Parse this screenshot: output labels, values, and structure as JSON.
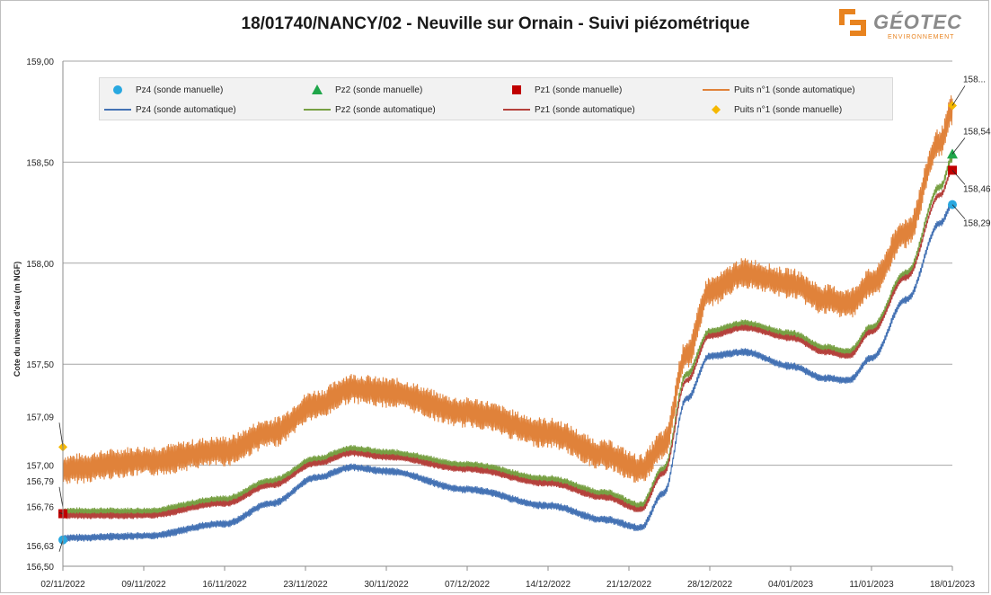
{
  "chart_data": {
    "type": "line",
    "title": "18/01740/NANCY/02 - Neuville sur Ornain - Suivi piézométrique",
    "xlabel": "",
    "ylabel": "Cote du niveau d'eau (m NGF)",
    "ylim": [
      156.5,
      159.0
    ],
    "xlim": [
      "2022-11-02",
      "2023-01-18"
    ],
    "grid": true,
    "legend_position": "top",
    "y_ticks": [
      "156,50",
      "157,00",
      "157,50",
      "158,00",
      "158,50",
      "159,00"
    ],
    "y_tick_values": [
      156.5,
      157.0,
      157.5,
      158.0,
      158.5,
      159.0
    ],
    "x_ticks": [
      "02/11/2022",
      "09/11/2022",
      "16/11/2022",
      "23/11/2022",
      "30/11/2022",
      "07/12/2022",
      "14/12/2022",
      "21/12/2022",
      "28/12/2022",
      "04/01/2023",
      "11/01/2023",
      "18/01/2023"
    ],
    "x_tick_dates": [
      "2022-11-02",
      "2022-11-09",
      "2022-11-16",
      "2022-11-23",
      "2022-11-30",
      "2022-12-07",
      "2022-12-14",
      "2022-12-21",
      "2022-12-28",
      "2023-01-04",
      "2023-01-11",
      "2023-01-18"
    ],
    "series": [
      {
        "name": "Puits n°1 (sonde automatique)",
        "kind": "line",
        "color": "#e0823a",
        "noise_amplitude": 0.075,
        "x": [
          "2022-11-02",
          "2022-11-09",
          "2022-11-16",
          "2022-11-20",
          "2022-11-24",
          "2022-11-27",
          "2022-11-30",
          "2022-12-07",
          "2022-12-14",
          "2022-12-19",
          "2022-12-22",
          "2022-12-24",
          "2022-12-26",
          "2022-12-28",
          "2022-12-31",
          "2023-01-04",
          "2023-01-07",
          "2023-01-09",
          "2023-01-11",
          "2023-01-14",
          "2023-01-17",
          "2023-01-18"
        ],
        "values": [
          156.98,
          157.02,
          157.07,
          157.16,
          157.3,
          157.38,
          157.36,
          157.26,
          157.16,
          157.05,
          156.98,
          157.1,
          157.55,
          157.86,
          157.95,
          157.9,
          157.82,
          157.8,
          157.9,
          158.15,
          158.6,
          158.76
        ]
      },
      {
        "name": "Pz2 (sonde automatique)",
        "kind": "line",
        "color": "#77a043",
        "noise_amplitude": 0.02,
        "x": [
          "2022-11-02",
          "2022-11-09",
          "2022-11-16",
          "2022-11-20",
          "2022-11-24",
          "2022-11-27",
          "2022-11-30",
          "2022-12-07",
          "2022-12-14",
          "2022-12-19",
          "2022-12-22",
          "2022-12-24",
          "2022-12-26",
          "2022-12-28",
          "2022-12-31",
          "2023-01-04",
          "2023-01-07",
          "2023-01-09",
          "2023-01-11",
          "2023-01-14",
          "2023-01-17",
          "2023-01-18"
        ],
        "values": [
          156.77,
          156.77,
          156.83,
          156.92,
          157.03,
          157.08,
          157.06,
          157.0,
          156.93,
          156.86,
          156.8,
          156.98,
          157.45,
          157.66,
          157.7,
          157.65,
          157.58,
          157.56,
          157.68,
          157.95,
          158.38,
          158.52
        ]
      },
      {
        "name": "Pz1 (sonde automatique)",
        "kind": "line",
        "color": "#b5413c",
        "noise_amplitude": 0.015,
        "x": [
          "2022-11-02",
          "2022-11-09",
          "2022-11-16",
          "2022-11-20",
          "2022-11-24",
          "2022-11-27",
          "2022-11-30",
          "2022-12-07",
          "2022-12-14",
          "2022-12-19",
          "2022-12-22",
          "2022-12-24",
          "2022-12-26",
          "2022-12-28",
          "2022-12-31",
          "2023-01-04",
          "2023-01-07",
          "2023-01-09",
          "2023-01-11",
          "2023-01-14",
          "2023-01-17",
          "2023-01-18"
        ],
        "values": [
          156.75,
          156.75,
          156.81,
          156.9,
          157.01,
          157.06,
          157.04,
          156.98,
          156.91,
          156.84,
          156.78,
          156.96,
          157.42,
          157.64,
          157.68,
          157.63,
          157.56,
          157.54,
          157.66,
          157.93,
          158.34,
          158.46
        ]
      },
      {
        "name": "Pz4 (sonde automatique)",
        "kind": "line",
        "color": "#4472b4",
        "noise_amplitude": 0.018,
        "x": [
          "2022-11-02",
          "2022-11-09",
          "2022-11-16",
          "2022-11-20",
          "2022-11-24",
          "2022-11-27",
          "2022-11-30",
          "2022-12-07",
          "2022-12-14",
          "2022-12-19",
          "2022-12-22",
          "2022-12-24",
          "2022-12-26",
          "2022-12-28",
          "2022-12-31",
          "2023-01-04",
          "2023-01-07",
          "2023-01-09",
          "2023-01-11",
          "2023-01-14",
          "2023-01-17",
          "2023-01-18"
        ],
        "values": [
          156.64,
          156.65,
          156.71,
          156.81,
          156.94,
          156.99,
          156.97,
          156.88,
          156.8,
          156.73,
          156.69,
          156.86,
          157.33,
          157.54,
          157.56,
          157.49,
          157.43,
          157.42,
          157.53,
          157.82,
          158.2,
          158.29
        ]
      },
      {
        "name": "Pz4 (sonde manuelle)",
        "kind": "marker",
        "marker": "circle",
        "color": "#29a8e0",
        "points": [
          {
            "x": "2022-11-02",
            "y": 156.63,
            "label": "156,63"
          },
          {
            "x": "2023-01-18",
            "y": 158.29,
            "label": "158,29"
          }
        ]
      },
      {
        "name": "Pz2 (sonde manuelle)",
        "kind": "marker",
        "marker": "triangle",
        "color": "#1fa64a",
        "points": [
          {
            "x": "2023-01-18",
            "y": 158.54,
            "label": "158,54"
          }
        ]
      },
      {
        "name": "Pz1 (sonde manuelle)",
        "kind": "marker",
        "marker": "square",
        "color": "#c00000",
        "points": [
          {
            "x": "2022-11-02",
            "y": 156.76,
            "label": "156,76"
          },
          {
            "x": "2023-01-18",
            "y": 158.46,
            "label": "158,46"
          }
        ]
      },
      {
        "name": "Puits n°1 (sonde manuelle)",
        "kind": "marker",
        "marker": "diamond",
        "color": "#f5b800",
        "points": [
          {
            "x": "2022-11-02",
            "y": 157.09,
            "label": "157,09"
          },
          {
            "x": "2023-01-18",
            "y": 158.78,
            "label": "158..."
          }
        ]
      }
    ],
    "extra_labels": [
      {
        "x": "2022-11-02",
        "y": 156.79,
        "label": "156,79"
      }
    ],
    "legend_order": [
      "Pz4 (sonde manuelle)",
      "Pz2 (sonde manuelle)",
      "Pz1 (sonde manuelle)",
      "Puits n°1 (sonde automatique)",
      "Pz4 (sonde automatique)",
      "Pz2 (sonde automatique)",
      "Pz1 (sonde automatique)",
      "Puits n°1 (sonde manuelle)"
    ]
  },
  "logo": {
    "name": "GÉOTEC",
    "subtitle": "ENVIRONNEMENT",
    "color_orange": "#e8831f",
    "color_grey": "#8a8a8a"
  }
}
